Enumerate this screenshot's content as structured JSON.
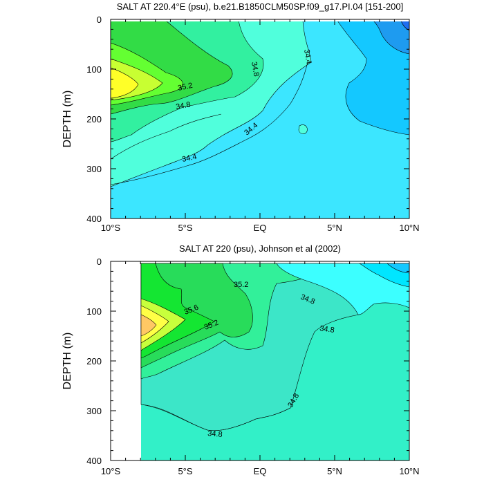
{
  "chart_data": [
    {
      "type": "contour",
      "title": "SALT AT 220.4°E (psu), b.e21.B1850CLM50SP.f09_g17.PI.04 [151-200]",
      "ylabel": "DEPTH (m)",
      "xlabel": "",
      "x_tick_labels": [
        "10°S",
        "5°S",
        "EQ",
        "5°N",
        "10°N"
      ],
      "x_tick_values": [
        -10,
        -5,
        0,
        5,
        10
      ],
      "y_tick_labels": [
        "0",
        "100",
        "200",
        "300",
        "400"
      ],
      "y_tick_values": [
        0,
        100,
        200,
        300,
        400
      ],
      "xlim": [
        -10,
        10
      ],
      "ylim": [
        0,
        400
      ],
      "y_inverted": true,
      "contour_interval": 0.2,
      "contour_labels": [
        "34.4",
        "34.8",
        "35.2",
        "34.8",
        "34.4",
        "34.4"
      ],
      "fill_colors": {
        "34.0": "#1e6ef0",
        "34.2": "#1e9bf0",
        "34.4": "#14c8ff",
        "34.6": "#3ce6ff",
        "34.8": "#50ffdc",
        "35.0": "#32f0a0",
        "35.2": "#32dc46",
        "35.4": "#64ff32",
        "35.6": "#c8ff32",
        "35.8": "#ffff28",
        "36.0": "#ffc864"
      }
    },
    {
      "type": "contour",
      "title": "SALT AT 220 (psu), Johnson et al (2002)",
      "ylabel": "DEPTH (m)",
      "xlabel": "",
      "x_tick_labels": [
        "10°S",
        "5°S",
        "EQ",
        "5°N",
        "10°N"
      ],
      "x_tick_values": [
        -10,
        -5,
        0,
        5,
        10
      ],
      "y_tick_labels": [
        "0",
        "100",
        "200",
        "300",
        "400"
      ],
      "y_tick_values": [
        0,
        100,
        200,
        300,
        400
      ],
      "xlim": [
        -10,
        10
      ],
      "ylim": [
        0,
        400
      ],
      "y_inverted": true,
      "data_xlim": [
        -8,
        10
      ],
      "contour_interval": 0.2,
      "contour_labels": [
        "35.2",
        "35.6",
        "35.2",
        "34.8",
        "34.8",
        "34.8",
        "34.8"
      ]
    }
  ]
}
